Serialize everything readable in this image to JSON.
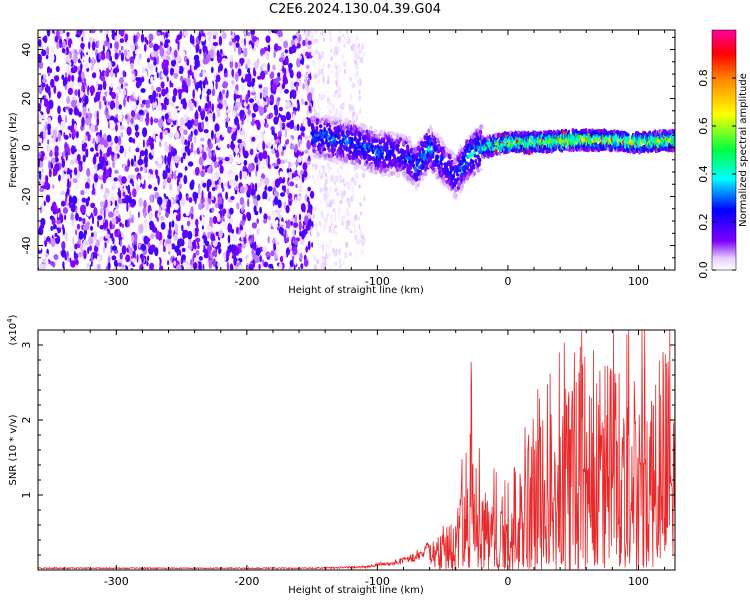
{
  "title": "C2E6.2024.130.04.39.G04",
  "chart_data": [
    {
      "type": "heatmap",
      "name": "spectrogram",
      "xlabel": "Height of straight line (km)",
      "ylabel": "Frequency (Hz)",
      "xlim": [
        -360,
        128
      ],
      "ylim": [
        -50,
        48
      ],
      "xticks": [
        -300,
        -200,
        -100,
        0,
        100
      ],
      "yticks": [
        -40,
        -20,
        0,
        20,
        40
      ],
      "colorbar": {
        "label": "Normalized spectral amplitude",
        "range": [
          0.0,
          1.0
        ],
        "ticks": [
          "0.0",
          "0.2",
          "0.4",
          "0.6",
          "0.8"
        ],
        "colors": [
          "#ffffff",
          "#e6ccff",
          "#8000ff",
          "#0000ff",
          "#00ffff",
          "#00ff40",
          "#ffff00",
          "#ff8000",
          "#ff0000",
          "#ff00a0"
        ]
      },
      "noise_region": {
        "x": [
          -360,
          -150
        ],
        "y": [
          -50,
          48
        ],
        "amplitude": 0.15
      },
      "fade_region": {
        "x": [
          -150,
          -110
        ],
        "amplitude": 0.05
      },
      "signal_track": {
        "x": [
          -150,
          -120,
          -100,
          -80,
          -70,
          -60,
          -50,
          -40,
          -30,
          -20,
          0,
          20,
          50,
          80,
          100,
          128
        ],
        "center_hz": [
          5,
          2,
          -2,
          -3,
          -8,
          0,
          -6,
          -12,
          -4,
          0,
          2,
          2,
          3,
          3,
          2,
          3
        ],
        "amplitude": [
          0.3,
          0.28,
          0.3,
          0.25,
          0.3,
          0.35,
          0.25,
          0.25,
          0.35,
          0.4,
          0.6,
          0.55,
          0.6,
          0.55,
          0.6,
          0.55
        ]
      }
    },
    {
      "type": "line",
      "name": "snr",
      "xlabel": "Height of straight line (km)",
      "ylabel": "SNR (10 * v/v)",
      "multiplier": "(x10^4)",
      "xlim": [
        -360,
        128
      ],
      "ylim": [
        0,
        3.2
      ],
      "xticks": [
        -300,
        -200,
        -100,
        0,
        100
      ],
      "yticks": [
        1,
        2,
        3
      ],
      "color": "#e8292b",
      "envelope": {
        "x": [
          -360,
          -150,
          -110,
          -80,
          -60,
          -40,
          -30,
          -20,
          -10,
          0,
          10,
          20,
          30,
          40,
          50,
          60,
          70,
          80,
          90,
          100,
          110,
          120,
          128
        ],
        "y": [
          0.03,
          0.03,
          0.05,
          0.15,
          0.35,
          0.7,
          1.8,
          1.1,
          1.0,
          1.05,
          1.8,
          2.4,
          2.5,
          3.2,
          3.0,
          3.2,
          2.8,
          2.85,
          2.7,
          2.6,
          2.5,
          3.0,
          2.5
        ]
      }
    }
  ]
}
